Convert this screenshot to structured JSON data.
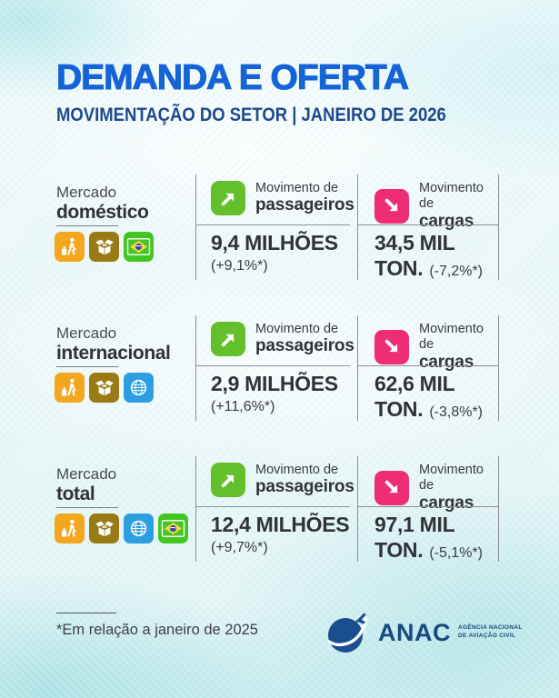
{
  "header": {
    "title": "DEMANDA E OFERTA",
    "subtitle": "MOVIMENTAÇÃO DO SETOR | JANEIRO DE 2026"
  },
  "rows": [
    {
      "market_prefix": "Mercado",
      "market_name": "doméstico",
      "icons": [
        "traveler-icon",
        "cargo-box-icon",
        "brazil-flag-icon"
      ],
      "passengers": {
        "icon": "arrow-up-right-icon",
        "label_top": "Movimento de",
        "label_bottom": "passageiros",
        "value": "9,4 MILHÕES",
        "delta": "(+9,1%*)"
      },
      "cargo": {
        "icon": "arrow-down-right-icon",
        "label_top": "Movimento de",
        "label_bottom": "cargas",
        "value": "34,5 MIL",
        "unit": "TON.",
        "delta": "(-7,2%*)"
      }
    },
    {
      "market_prefix": "Mercado",
      "market_name": "internacional",
      "icons": [
        "traveler-icon",
        "cargo-box-icon",
        "globe-icon"
      ],
      "passengers": {
        "icon": "arrow-up-right-icon",
        "label_top": "Movimento de",
        "label_bottom": "passageiros",
        "value": "2,9 MILHÕES",
        "delta": "(+11,6%*)"
      },
      "cargo": {
        "icon": "arrow-down-right-icon",
        "label_top": "Movimento de",
        "label_bottom": "cargas",
        "value": "62,6 MIL",
        "unit": "TON.",
        "delta": "(-3,8%*)"
      }
    },
    {
      "market_prefix": "Mercado",
      "market_name": "total",
      "icons": [
        "traveler-icon",
        "cargo-box-icon",
        "globe-icon",
        "brazil-flag-icon"
      ],
      "passengers": {
        "icon": "arrow-up-right-icon",
        "label_top": "Movimento de",
        "label_bottom": "passageiros",
        "value": "12,4 MILHÕES",
        "delta": "(+9,7%*)"
      },
      "cargo": {
        "icon": "arrow-down-right-icon",
        "label_top": "Movimento de",
        "label_bottom": "cargas",
        "value": "97,1 MIL",
        "unit": "TON.",
        "delta": "(-5,1%*)"
      }
    }
  ],
  "footer": {
    "note": "*Em relação a janeiro de 2025",
    "logo": {
      "name": "ANAC",
      "tagline_line1": "AGÊNCIA NACIONAL",
      "tagline_line2": "DE AVIAÇÃO CIVIL"
    }
  },
  "colors": {
    "title_blue": "#1464D8",
    "subtitle_blue": "#1C4A8E",
    "text_dark": "#323239",
    "passengers_green": "#63C02A",
    "cargo_pink": "#EF2D74",
    "icon_amber": "#F2A71E",
    "icon_gold": "#9A7A14",
    "icon_globe_blue": "#2D9FE0",
    "icon_flag_green": "#43C621",
    "anac_blue": "#1B4E8F"
  }
}
